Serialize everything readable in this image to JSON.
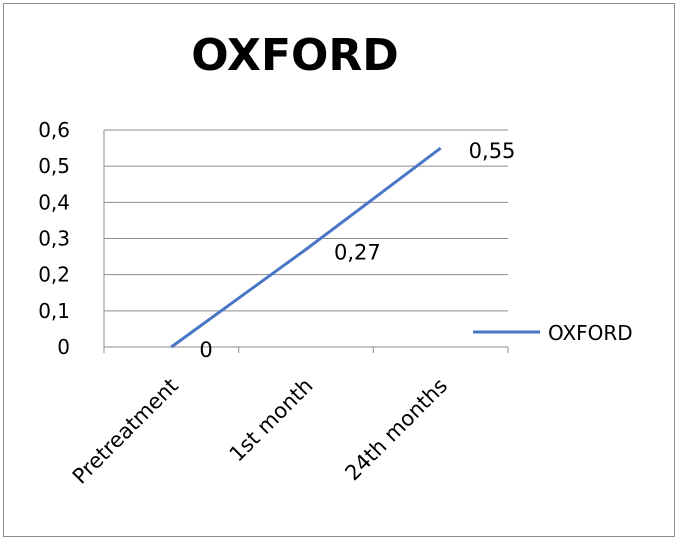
{
  "chart_data": {
    "type": "line",
    "title": "OXFORD",
    "xlabel": "",
    "ylabel": "",
    "categories": [
      "Pretreatment",
      "1st month",
      "24th months"
    ],
    "series": [
      {
        "name": "OXFORD",
        "values": [
          0,
          0.27,
          0.55
        ],
        "color": "#4a76c6"
      }
    ],
    "data_labels": [
      "0",
      "0,27",
      "0,55"
    ],
    "ylim": [
      0,
      0.6
    ],
    "yticks": [
      0,
      0.1,
      0.2,
      0.3,
      0.4,
      0.5,
      0.6
    ],
    "ytick_labels": [
      "0",
      "0,1",
      "0,2",
      "0,3",
      "0,4",
      "0,5",
      "0,6"
    ],
    "grid": true,
    "legend_position": "right"
  }
}
